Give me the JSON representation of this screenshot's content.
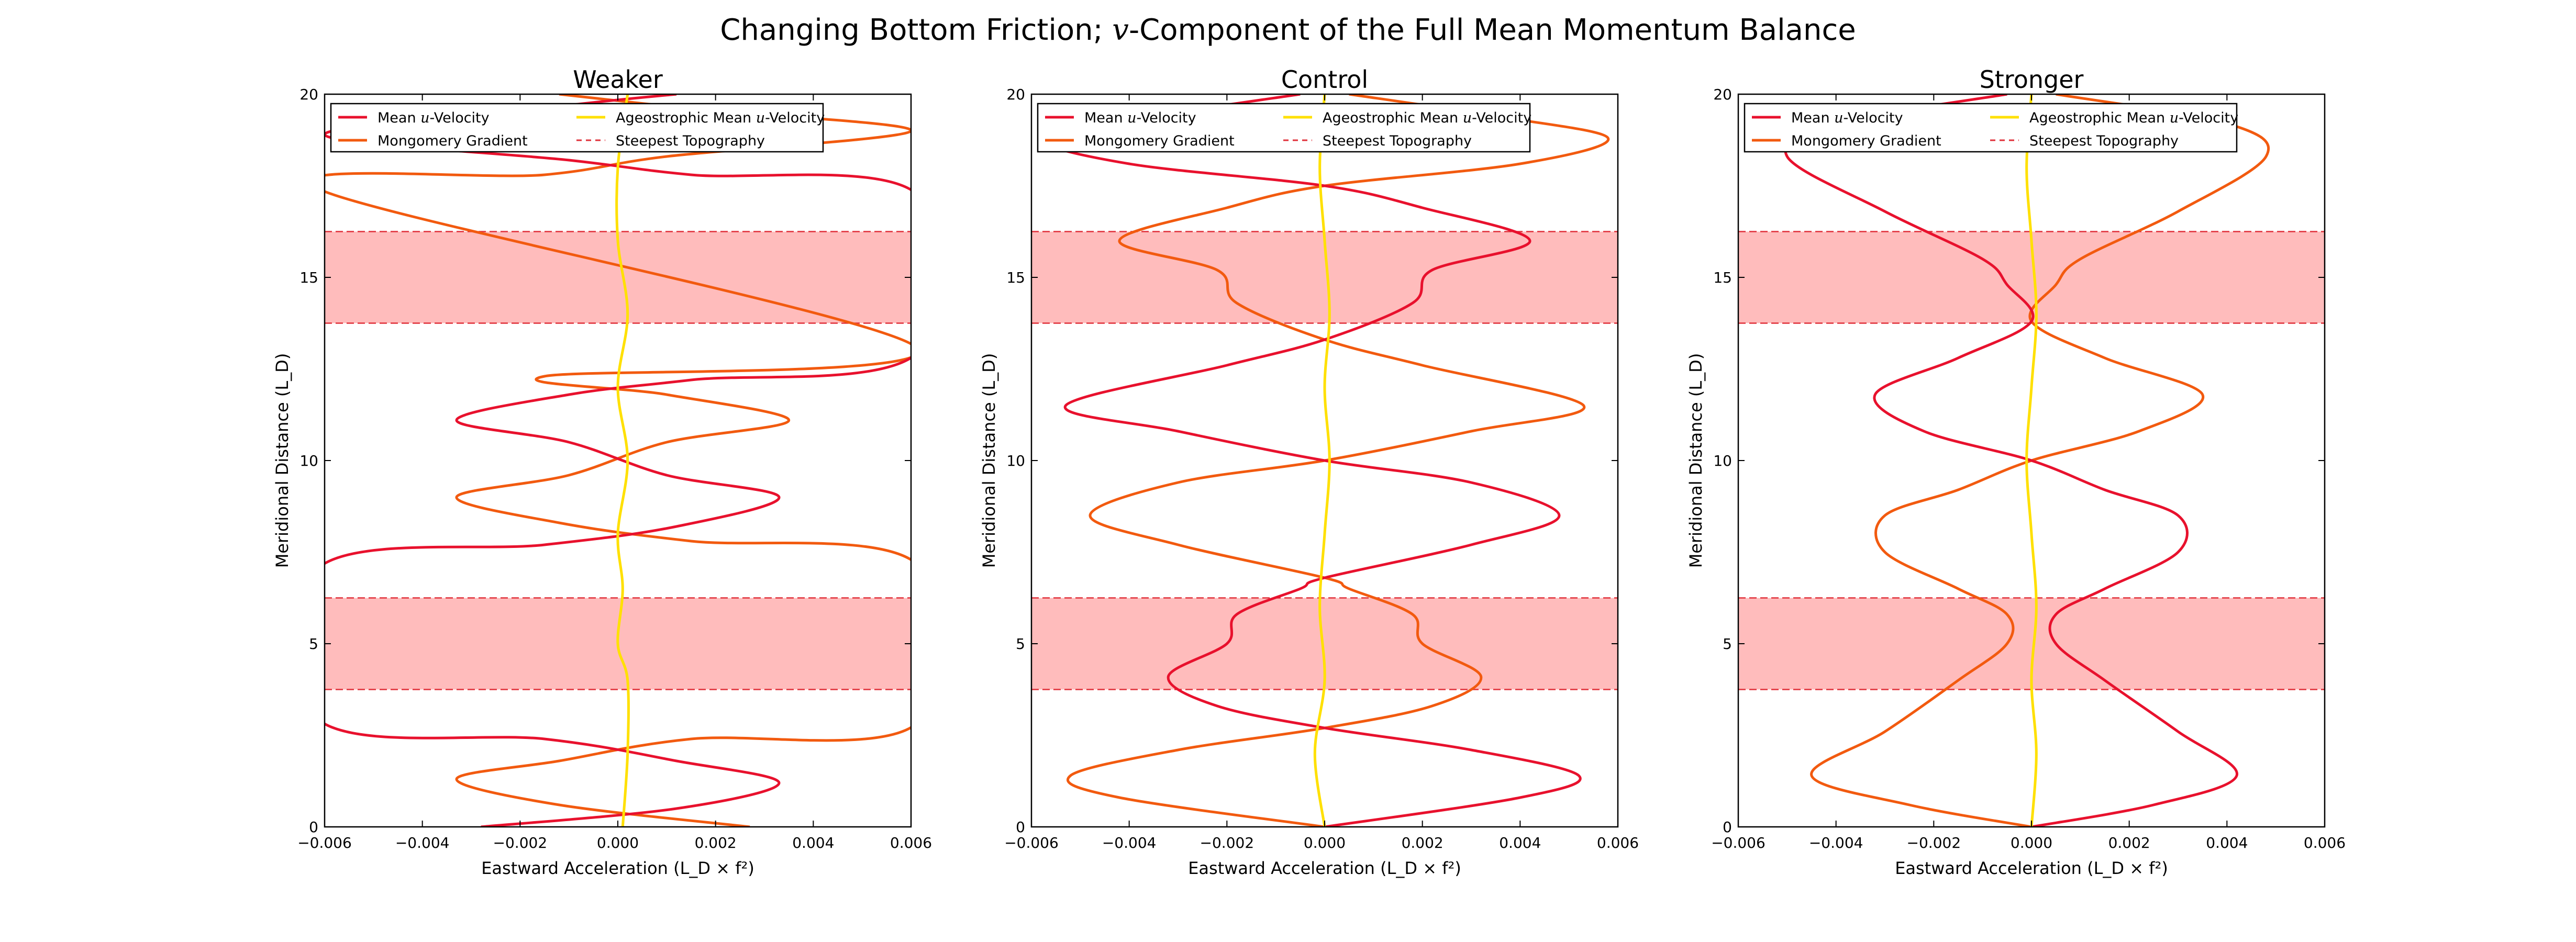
{
  "figure": {
    "title_parts": [
      "Changing Bottom Friction; ",
      "v",
      "-Component of the Full Mean Momentum Balance"
    ]
  },
  "colors": {
    "mean_u": "#e8112d",
    "montgomery": "#f25a0f",
    "ageo": "#ffe000",
    "band_fill": "#ffbcbc",
    "steepest": "#e0303a"
  },
  "chart_data": [
    {
      "type": "line",
      "title": "Weaker",
      "xlabel": "Eastward Acceleration (L_D × f²)",
      "ylabel": "Meridional Distance (L_D)",
      "xlim": [
        -0.006,
        0.006
      ],
      "ylim": [
        0,
        20
      ],
      "xticks": [
        "−0.006",
        "−0.004",
        "−0.002",
        "0.000",
        "0.002",
        "0.004",
        "0.006"
      ],
      "yticks": [
        "0",
        "5",
        "10",
        "15",
        "20"
      ],
      "legend_position": "top-left",
      "steepest_topography_bands": [
        [
          3.75,
          6.25
        ],
        [
          13.75,
          16.25
        ]
      ],
      "series": [
        {
          "name": "Mean u-Velocity",
          "key": "mean_u",
          "points": [
            [
              -0.0028,
              0
            ],
            [
              0.0012,
              0.5
            ],
            [
              0.0033,
              1.2
            ],
            [
              0.0012,
              1.8
            ],
            [
              -0.0015,
              2.4
            ],
            [
              -0.0061,
              2.9
            ],
            [
              -0.0061,
              7.1
            ],
            [
              -0.0015,
              7.7
            ],
            [
              0.0012,
              8.2
            ],
            [
              0.0033,
              9
            ],
            [
              0.001,
              9.6
            ],
            [
              -0.001,
              10.5
            ],
            [
              -0.0033,
              11.1
            ],
            [
              -0.001,
              11.8
            ],
            [
              0.0015,
              12.2
            ],
            [
              0.0061,
              12.9
            ],
            [
              0.0061,
              17.3
            ],
            [
              0.0015,
              17.8
            ],
            [
              -0.001,
              18.2
            ],
            [
              -0.006,
              18.9
            ],
            [
              -0.001,
              19.7
            ],
            [
              0.0012,
              20
            ]
          ]
        },
        {
          "name": "Mongomery Gradient",
          "key": "montgomery",
          "points": [
            [
              0.0027,
              0
            ],
            [
              -0.0012,
              0.6
            ],
            [
              -0.0033,
              1.3
            ],
            [
              -0.0012,
              1.8
            ],
            [
              0.0015,
              2.4
            ],
            [
              0.0061,
              2.8
            ],
            [
              0.0061,
              7.2
            ],
            [
              0.0015,
              7.8
            ],
            [
              -0.0012,
              8.3
            ],
            [
              -0.0033,
              9
            ],
            [
              -0.001,
              9.6
            ],
            [
              0.001,
              10.5
            ],
            [
              0.0035,
              11.1
            ],
            [
              0.001,
              11.8
            ],
            [
              -0.0015,
              12.3
            ],
            [
              0.0061,
              13.1
            ],
            [
              -0.0061,
              17.4
            ],
            [
              -0.0015,
              17.8
            ],
            [
              0.001,
              18.3
            ],
            [
              0.006,
              19
            ],
            [
              0.0015,
              19.6
            ],
            [
              -0.0012,
              20
            ]
          ]
        },
        {
          "name": "Ageostrophic Mean u-Velocity",
          "key": "ageo",
          "points": [
            [
              0.0001,
              0
            ],
            [
              0.0002,
              2
            ],
            [
              0.0002,
              4
            ],
            [
              0.0,
              5
            ],
            [
              0.0001,
              6.5
            ],
            [
              0.0,
              8
            ],
            [
              0.0002,
              10
            ],
            [
              0.0,
              12
            ],
            [
              0.0002,
              14
            ],
            [
              0.0,
              16
            ],
            [
              0.0,
              18
            ],
            [
              0.0002,
              20
            ]
          ]
        },
        {
          "name": "Steepest Topography",
          "key": "steepest",
          "points": []
        }
      ]
    },
    {
      "type": "line",
      "title": "Control",
      "xlabel": "Eastward Acceleration (L_D × f²)",
      "ylabel": "Meridional Distance (L_D)",
      "xlim": [
        -0.006,
        0.006
      ],
      "ylim": [
        0,
        20
      ],
      "xticks": [
        "−0.006",
        "−0.004",
        "−0.002",
        "0.000",
        "0.002",
        "0.004",
        "0.006"
      ],
      "yticks": [
        "0",
        "5",
        "10",
        "15",
        "20"
      ],
      "legend_position": "top-left",
      "steepest_topography_bands": [
        [
          3.75,
          6.25
        ],
        [
          13.75,
          16.25
        ]
      ],
      "series": [
        {
          "name": "Mean u-Velocity",
          "key": "mean_u",
          "points": [
            [
              0.0,
              0
            ],
            [
              0.004,
              0.8
            ],
            [
              0.0052,
              1.4
            ],
            [
              0.003,
              2.1
            ],
            [
              0.0,
              2.7
            ],
            [
              -0.0022,
              3.3
            ],
            [
              -0.0032,
              4.1
            ],
            [
              -0.002,
              5
            ],
            [
              -0.0018,
              5.8
            ],
            [
              -0.0005,
              6.5
            ],
            [
              0.0,
              6.8
            ],
            [
              0.003,
              7.7
            ],
            [
              0.0048,
              8.5
            ],
            [
              0.003,
              9.4
            ],
            [
              0.0,
              10
            ],
            [
              -0.003,
              10.8
            ],
            [
              -0.0053,
              11.5
            ],
            [
              -0.002,
              12.6
            ],
            [
              0.0,
              13.3
            ],
            [
              0.0018,
              14.3
            ],
            [
              0.0022,
              15.2
            ],
            [
              0.0042,
              16
            ],
            [
              0.002,
              16.9
            ],
            [
              0.0,
              17.5
            ],
            [
              -0.004,
              18.1
            ],
            [
              -0.0058,
              18.8
            ],
            [
              -0.0035,
              19.4
            ],
            [
              -0.0005,
              20
            ]
          ]
        },
        {
          "name": "Mongomery Gradient",
          "key": "montgomery",
          "points": [
            [
              0.0,
              0
            ],
            [
              -0.0042,
              0.8
            ],
            [
              -0.0052,
              1.4
            ],
            [
              -0.003,
              2.1
            ],
            [
              0.0,
              2.7
            ],
            [
              0.0022,
              3.3
            ],
            [
              0.0032,
              4.1
            ],
            [
              0.002,
              5
            ],
            [
              0.0018,
              5.8
            ],
            [
              0.0005,
              6.5
            ],
            [
              0.0,
              6.8
            ],
            [
              -0.003,
              7.7
            ],
            [
              -0.0048,
              8.5
            ],
            [
              -0.003,
              9.4
            ],
            [
              0.0,
              10
            ],
            [
              0.003,
              10.8
            ],
            [
              0.0053,
              11.5
            ],
            [
              0.002,
              12.6
            ],
            [
              0.0,
              13.3
            ],
            [
              -0.0018,
              14.3
            ],
            [
              -0.0022,
              15.2
            ],
            [
              -0.0042,
              16
            ],
            [
              -0.002,
              16.9
            ],
            [
              0.0,
              17.5
            ],
            [
              0.004,
              18.1
            ],
            [
              0.0058,
              18.8
            ],
            [
              0.0035,
              19.4
            ],
            [
              0.0005,
              20
            ]
          ]
        },
        {
          "name": "Ageostrophic Mean u-Velocity",
          "key": "ageo",
          "points": [
            [
              0.0,
              0
            ],
            [
              -0.0002,
              2
            ],
            [
              0.0,
              4
            ],
            [
              -0.0001,
              6
            ],
            [
              0.0,
              8
            ],
            [
              0.0001,
              10
            ],
            [
              0.0,
              12
            ],
            [
              0.0001,
              14
            ],
            [
              0.0,
              16
            ],
            [
              -0.0001,
              18
            ],
            [
              0.0,
              20
            ]
          ]
        },
        {
          "name": "Steepest Topography",
          "key": "steepest",
          "points": []
        }
      ]
    },
    {
      "type": "line",
      "title": "Stronger",
      "xlabel": "Eastward Acceleration (L_D × f²)",
      "ylabel": "Meridional Distance (L_D)",
      "xlim": [
        -0.006,
        0.006
      ],
      "ylim": [
        0,
        20
      ],
      "xticks": [
        "−0.006",
        "−0.004",
        "−0.002",
        "0.000",
        "0.002",
        "0.004",
        "0.006"
      ],
      "yticks": [
        "0",
        "5",
        "10",
        "15",
        "20"
      ],
      "legend_position": "top-left",
      "steepest_topography_bands": [
        [
          3.75,
          6.25
        ],
        [
          13.75,
          16.25
        ]
      ],
      "series": [
        {
          "name": "Mean u-Velocity",
          "key": "mean_u",
          "points": [
            [
              0.0,
              0
            ],
            [
              0.0025,
              0.6
            ],
            [
              0.0042,
              1.4
            ],
            [
              0.003,
              2.6
            ],
            [
              0.0015,
              4
            ],
            [
              0.0005,
              5
            ],
            [
              0.0005,
              5.8
            ],
            [
              0.0015,
              6.5
            ],
            [
              0.003,
              7.5
            ],
            [
              0.003,
              8.5
            ],
            [
              0.0015,
              9.2
            ],
            [
              0.0,
              10
            ],
            [
              -0.0022,
              10.8
            ],
            [
              -0.0032,
              11.8
            ],
            [
              -0.0015,
              12.8
            ],
            [
              0.0,
              13.8
            ],
            [
              -0.0005,
              14.8
            ],
            [
              -0.001,
              15.5
            ],
            [
              -0.003,
              16.8
            ],
            [
              -0.005,
              18.3
            ],
            [
              -0.004,
              19.2
            ],
            [
              -0.0005,
              20
            ]
          ]
        },
        {
          "name": "Mongomery Gradient",
          "key": "montgomery",
          "points": [
            [
              0.0,
              0
            ],
            [
              -0.0025,
              0.6
            ],
            [
              -0.0045,
              1.4
            ],
            [
              -0.003,
              2.6
            ],
            [
              -0.0015,
              4
            ],
            [
              -0.0005,
              5
            ],
            [
              -0.0005,
              5.8
            ],
            [
              -0.0015,
              6.5
            ],
            [
              -0.003,
              7.5
            ],
            [
              -0.003,
              8.5
            ],
            [
              -0.0015,
              9.2
            ],
            [
              0.0,
              10
            ],
            [
              0.0022,
              10.8
            ],
            [
              0.0035,
              11.8
            ],
            [
              0.0015,
              12.8
            ],
            [
              0.0,
              13.8
            ],
            [
              0.0005,
              14.8
            ],
            [
              0.001,
              15.5
            ],
            [
              0.003,
              16.8
            ],
            [
              0.0048,
              18.3
            ],
            [
              0.004,
              19.2
            ],
            [
              0.0005,
              20
            ]
          ]
        },
        {
          "name": "Ageostrophic Mean u-Velocity",
          "key": "ageo",
          "points": [
            [
              0.0,
              0
            ],
            [
              0.0001,
              2
            ],
            [
              0.0,
              4
            ],
            [
              0.0001,
              6
            ],
            [
              0.0,
              8
            ],
            [
              -0.0001,
              10
            ],
            [
              0.0,
              12
            ],
            [
              0.0001,
              14
            ],
            [
              0.0,
              16
            ],
            [
              -0.0001,
              18
            ],
            [
              0.0,
              20
            ]
          ]
        },
        {
          "name": "Steepest Topography",
          "key": "steepest",
          "points": []
        }
      ]
    }
  ],
  "legend": [
    {
      "key": "mean_u",
      "label_parts": [
        "Mean ",
        "u",
        "-Velocity"
      ],
      "style": "solid"
    },
    {
      "key": "ageo",
      "label_parts": [
        "Ageostrophic Mean ",
        "u",
        "-Velocity"
      ],
      "style": "solid"
    },
    {
      "key": "montgomery",
      "label_parts": [
        "Mongomery Gradient"
      ],
      "style": "solid"
    },
    {
      "key": "steepest",
      "label_parts": [
        "Steepest Topography"
      ],
      "style": "dashed"
    }
  ]
}
